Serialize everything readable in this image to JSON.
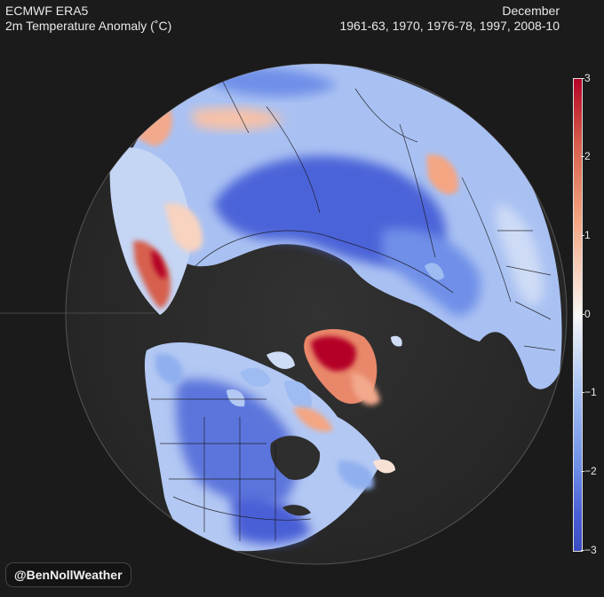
{
  "header": {
    "source": "ECMWF ERA5",
    "variable": "2m Temperature Anomaly (˚C)",
    "month": "December",
    "years": "1961-63, 1970, 1976-78, 1997, 2008-10"
  },
  "colorbar": {
    "ticks": [
      "3",
      "2",
      "1",
      "0",
      "−1",
      "−2",
      "−3"
    ],
    "range": [
      -3,
      3
    ],
    "colors": {
      "warm": "#b40426",
      "neutral": "#f7f7f7",
      "cold": "#3b4cc0"
    }
  },
  "credit": {
    "handle": "@BenNollWeather"
  },
  "map": {
    "projection": "orthographic north-polar",
    "colors": {
      "ocean": "#2b2b2b",
      "border": "#101010",
      "background": "#1b1b1b"
    }
  }
}
